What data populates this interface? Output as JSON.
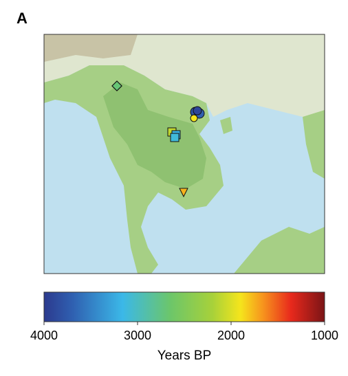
{
  "panel_label": "A",
  "colorbar": {
    "label": "Years BP",
    "range": [
      4000,
      1000
    ],
    "ticks": [
      4000,
      3000,
      2000,
      1000
    ]
  },
  "site_years": [
    2700,
    3800,
    3700,
    3900,
    1900,
    2100,
    3200,
    3100,
    1750
  ]
}
